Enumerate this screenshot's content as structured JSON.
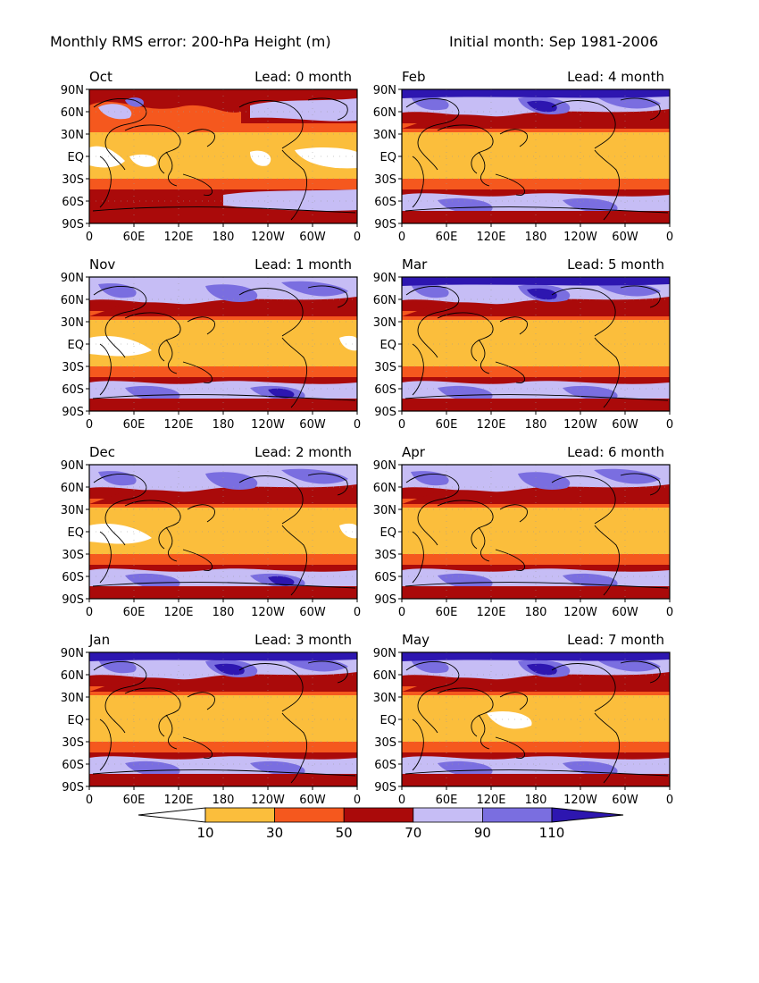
{
  "header": {
    "title": "Monthly RMS error: 200-hPa Height (m)",
    "subtitle": "Initial month: Sep 1981-2006"
  },
  "axes": {
    "lat_labels": [
      "90N",
      "60N",
      "30N",
      "EQ",
      "30S",
      "60S",
      "90S"
    ],
    "lon_labels": [
      "0",
      "60E",
      "120E",
      "180",
      "120W",
      "60W",
      "0"
    ]
  },
  "panels": [
    {
      "month": "Oct",
      "lead": "Lead: 0 month"
    },
    {
      "month": "Feb",
      "lead": "Lead: 4 month"
    },
    {
      "month": "Nov",
      "lead": "Lead: 1 month"
    },
    {
      "month": "Mar",
      "lead": "Lead: 5 month"
    },
    {
      "month": "Dec",
      "lead": "Lead: 2 month"
    },
    {
      "month": "Apr",
      "lead": "Lead: 6 month"
    },
    {
      "month": "Jan",
      "lead": "Lead: 3 month"
    },
    {
      "month": "May",
      "lead": "Lead: 7 month"
    }
  ],
  "colorbar": {
    "ticks": [
      "10",
      "30",
      "50",
      "70",
      "90",
      "110"
    ],
    "colors": [
      "#ffffff",
      "#fbbe3c",
      "#f5581e",
      "#aa0a0a",
      "#c6bdf5",
      "#7a6ee0",
      "#2d16b0"
    ]
  },
  "colors": {
    "white": "#ffffff",
    "yellow": "#fbbe3c",
    "orange": "#f5581e",
    "darkred": "#aa0a0a",
    "lavender": "#c6bdf5",
    "mediumblue": "#7a6ee0",
    "darkblue": "#2d16b0"
  }
}
